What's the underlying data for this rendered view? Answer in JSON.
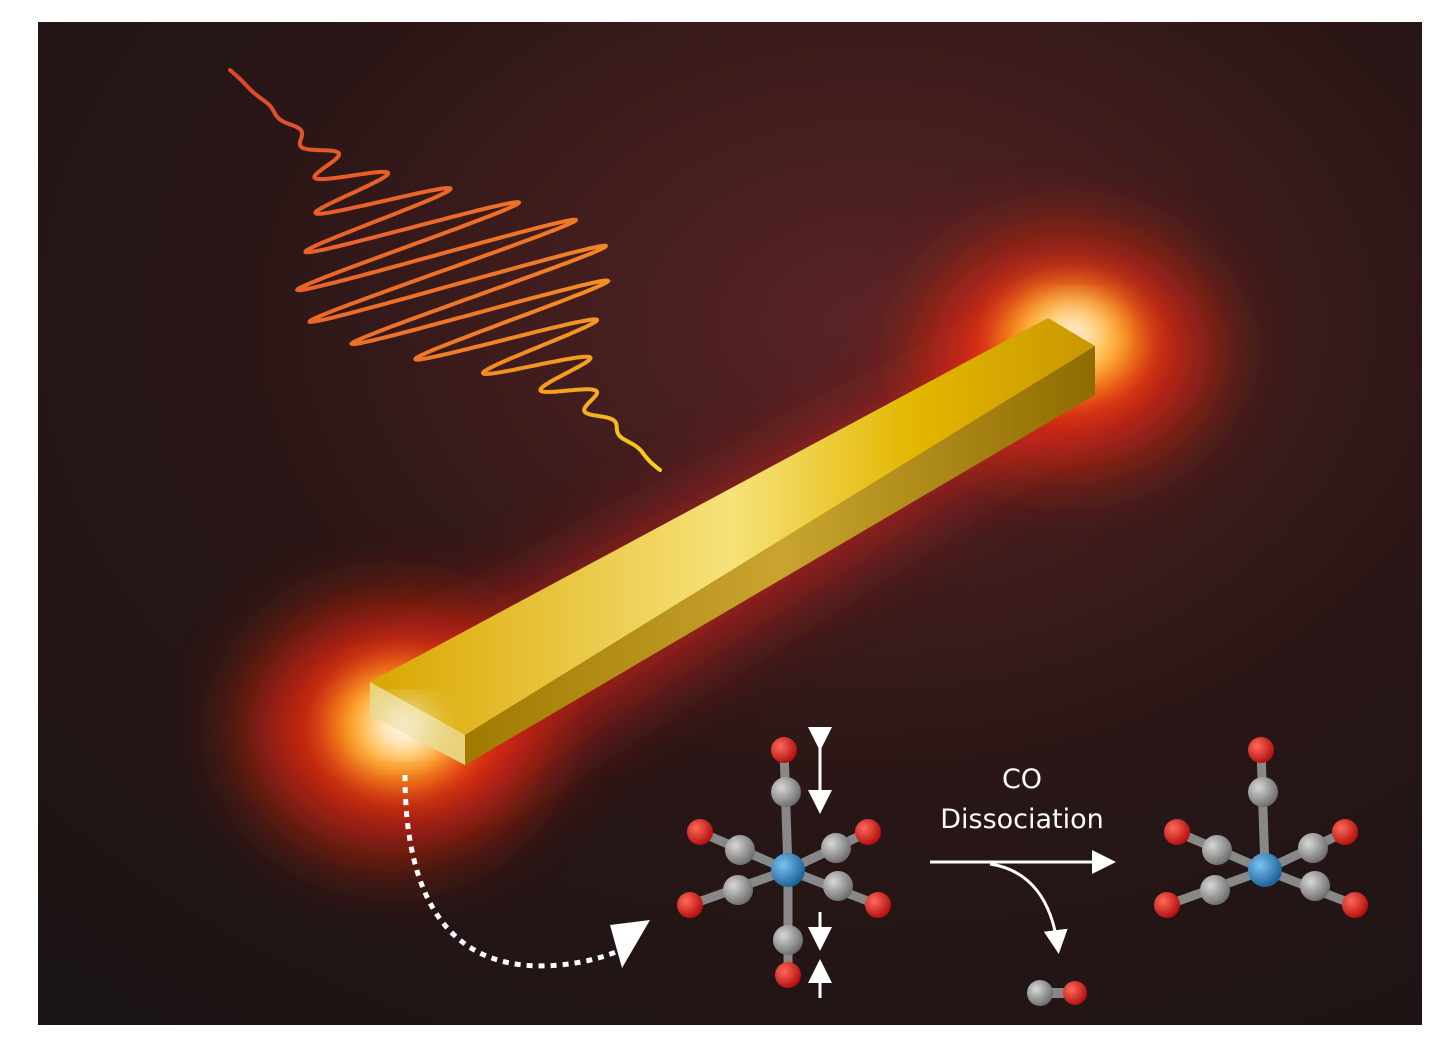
{
  "reaction": {
    "label_line1": "CO",
    "label_line2": "Dissociation"
  }
}
